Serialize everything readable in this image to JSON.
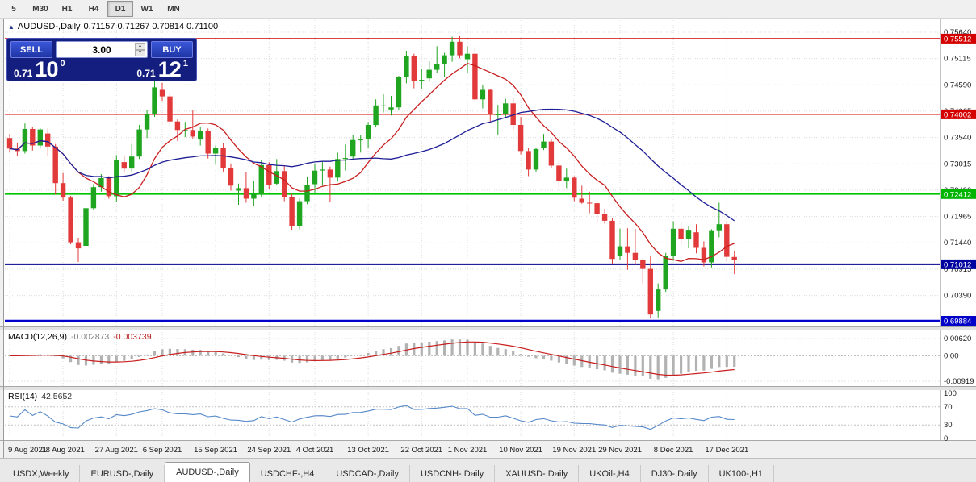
{
  "toolbar": {
    "timeframes": [
      "5",
      "M30",
      "H1",
      "H4",
      "D1",
      "W1",
      "MN"
    ],
    "active": "D1"
  },
  "chart": {
    "title_symbol": "AUDUSD-,Daily",
    "title_ohlc": "0.71157 0.71267 0.70814 0.71100"
  },
  "trade_panel": {
    "sell_label": "SELL",
    "buy_label": "BUY",
    "volume": "3.00",
    "sell_price_small": "0.71",
    "sell_price_big": "10",
    "sell_price_sup": "0",
    "buy_price_small": "0.71",
    "buy_price_big": "12",
    "buy_price_sup": "1"
  },
  "macd": {
    "name": "MACD(12,26,9)",
    "value_macd": "-0.002873",
    "value_signal": "-0.003739",
    "fast": 12,
    "slow": 26,
    "signal": 9,
    "axis_values": [
      "0.00620",
      "0.00",
      "-0.00919"
    ]
  },
  "rsi": {
    "name": "RSI(14)",
    "value": "42.5652",
    "period": 14,
    "axis_values": [
      "100",
      "70",
      "30",
      "0"
    ],
    "level_lines": [
      70,
      30
    ]
  },
  "tabs": [
    "USDX,Weekly",
    "EURUSD-,Daily",
    "AUDUSD-,Daily",
    "USDCHF-,H4",
    "USDCAD-,Daily",
    "USDCNH-,Daily",
    "XAUUSD-,Daily",
    "UKOil-,H4",
    "DJ30-,Daily",
    "UK100-,H1"
  ],
  "active_tab": "AUDUSD-,Daily",
  "colors": {
    "bull": "#1FA51F",
    "bear": "#E23A3A",
    "ma_fast": "#C81E1E",
    "ma_slow": "#1E1E96",
    "macd_hist": "#B2B2B2",
    "macd_signal": "#C81E1E",
    "rsi": "#5588C8",
    "grid": "#DCDCDC"
  },
  "chart_data": {
    "type": "candlestick",
    "symbol": "AUDUSD",
    "timeframe": "Daily",
    "y_axis": {
      "ticks": [
        "0.75640",
        "0.75115",
        "0.74590",
        "0.74065",
        "0.73540",
        "0.73015",
        "0.72490",
        "0.71965",
        "0.71440",
        "0.70915",
        "0.70390",
        "0.69865"
      ]
    },
    "hlines": [
      {
        "value": 0.75512,
        "label": "0.75512",
        "color": "#D40000",
        "width": 1.2
      },
      {
        "value": 0.74002,
        "label": "0.74002",
        "color": "#D40000",
        "width": 1.2
      },
      {
        "value": 0.72412,
        "label": "0.72412",
        "color": "#00C400",
        "width": 1.6
      },
      {
        "value": 0.71012,
        "label": "0.71012",
        "color": "#00008B",
        "width": 2
      },
      {
        "value": 0.69884,
        "label": "0.69884",
        "color": "#0000CD",
        "width": 2.6
      }
    ],
    "badges": [
      {
        "value": 0.75512,
        "label": "0.75512",
        "color": "#D40000"
      },
      {
        "value": 0.74002,
        "label": "0.74002",
        "color": "#D40000"
      },
      {
        "value": 0.72412,
        "label": "0.72412",
        "color": "#00B400"
      },
      {
        "value": 0.71012,
        "label": "0.71012",
        "color": "#0000A0"
      },
      {
        "value": 0.69884,
        "label": "0.69884",
        "color": "#0000C8"
      }
    ],
    "x_labels": [
      {
        "i": 0,
        "label": "9 Aug 2021"
      },
      {
        "i": 7,
        "label": "18 Aug 2021"
      },
      {
        "i": 14,
        "label": "27 Aug 2021"
      },
      {
        "i": 20,
        "label": "6 Sep 2021"
      },
      {
        "i": 27,
        "label": "15 Sep 2021"
      },
      {
        "i": 34,
        "label": "24 Sep 2021"
      },
      {
        "i": 40,
        "label": "4 Oct 2021"
      },
      {
        "i": 47,
        "label": "13 Oct 2021"
      },
      {
        "i": 54,
        "label": "22 Oct 2021"
      },
      {
        "i": 60,
        "label": "1 Nov 2021"
      },
      {
        "i": 67,
        "label": "10 Nov 2021"
      },
      {
        "i": 74,
        "label": "19 Nov 2021"
      },
      {
        "i": 80,
        "label": "29 Nov 2021"
      },
      {
        "i": 87,
        "label": "8 Dec 2021"
      },
      {
        "i": 94,
        "label": "17 Dec 2021"
      }
    ],
    "candles": [
      [
        "2021-08-09",
        0.7353,
        0.7361,
        0.7324,
        0.7332
      ],
      [
        "2021-08-10",
        0.7332,
        0.7344,
        0.7317,
        0.7327
      ],
      [
        "2021-08-11",
        0.7327,
        0.7382,
        0.7322,
        0.7371
      ],
      [
        "2021-08-12",
        0.7371,
        0.7375,
        0.7328,
        0.7338
      ],
      [
        "2021-08-13",
        0.7338,
        0.7373,
        0.7332,
        0.737
      ],
      [
        "2021-08-16",
        0.7362,
        0.7372,
        0.7317,
        0.7336
      ],
      [
        "2021-08-17",
        0.7336,
        0.7341,
        0.724,
        0.7263
      ],
      [
        "2021-08-18",
        0.7263,
        0.7283,
        0.7228,
        0.7234
      ],
      [
        "2021-08-19",
        0.7234,
        0.7238,
        0.7141,
        0.7145
      ],
      [
        "2021-08-20",
        0.7145,
        0.7154,
        0.7106,
        0.7133
      ],
      [
        "2021-08-23",
        0.7138,
        0.7218,
        0.7136,
        0.7213
      ],
      [
        "2021-08-24",
        0.7213,
        0.7261,
        0.721,
        0.7255
      ],
      [
        "2021-08-25",
        0.7255,
        0.7281,
        0.7246,
        0.7273
      ],
      [
        "2021-08-26",
        0.7273,
        0.7277,
        0.7232,
        0.7237
      ],
      [
        "2021-08-27",
        0.7237,
        0.7319,
        0.7226,
        0.731
      ],
      [
        "2021-08-30",
        0.7305,
        0.7316,
        0.7284,
        0.7292
      ],
      [
        "2021-08-31",
        0.7292,
        0.7341,
        0.7286,
        0.7316
      ],
      [
        "2021-09-01",
        0.7316,
        0.7379,
        0.7311,
        0.737
      ],
      [
        "2021-09-02",
        0.737,
        0.7408,
        0.7353,
        0.74
      ],
      [
        "2021-09-03",
        0.74,
        0.7478,
        0.7395,
        0.7454
      ],
      [
        "2021-09-06",
        0.7449,
        0.7463,
        0.7427,
        0.7436
      ],
      [
        "2021-09-07",
        0.7436,
        0.7442,
        0.7379,
        0.7386
      ],
      [
        "2021-09-08",
        0.7386,
        0.739,
        0.7347,
        0.7369
      ],
      [
        "2021-09-09",
        0.7369,
        0.7385,
        0.7355,
        0.7369
      ],
      [
        "2021-09-10",
        0.7369,
        0.7409,
        0.7352,
        0.7356
      ],
      [
        "2021-09-13",
        0.735,
        0.7376,
        0.7338,
        0.7367
      ],
      [
        "2021-09-14",
        0.7367,
        0.7372,
        0.7312,
        0.7322
      ],
      [
        "2021-09-15",
        0.7322,
        0.7338,
        0.73,
        0.7334
      ],
      [
        "2021-09-16",
        0.7334,
        0.7343,
        0.7286,
        0.7293
      ],
      [
        "2021-09-17",
        0.7293,
        0.7302,
        0.7248,
        0.7258
      ],
      [
        "2021-09-20",
        0.7248,
        0.7262,
        0.722,
        0.7253
      ],
      [
        "2021-09-21",
        0.7253,
        0.7285,
        0.7224,
        0.7232
      ],
      [
        "2021-09-22",
        0.7232,
        0.7267,
        0.7218,
        0.7241
      ],
      [
        "2021-09-23",
        0.7241,
        0.7309,
        0.7236,
        0.7299
      ],
      [
        "2021-09-24",
        0.7299,
        0.7305,
        0.7251,
        0.726
      ],
      [
        "2021-09-27",
        0.7262,
        0.7311,
        0.726,
        0.7287
      ],
      [
        "2021-09-28",
        0.7287,
        0.7297,
        0.7227,
        0.7236
      ],
      [
        "2021-09-29",
        0.7236,
        0.7242,
        0.717,
        0.7178
      ],
      [
        "2021-09-30",
        0.7178,
        0.7232,
        0.7171,
        0.7227
      ],
      [
        "2021-10-01",
        0.7227,
        0.7275,
        0.7221,
        0.726
      ],
      [
        "2021-10-04",
        0.7261,
        0.7302,
        0.7243,
        0.7288
      ],
      [
        "2021-10-05",
        0.7288,
        0.7305,
        0.7258,
        0.729
      ],
      [
        "2021-10-06",
        0.729,
        0.7296,
        0.7225,
        0.7274
      ],
      [
        "2021-10-07",
        0.7274,
        0.7324,
        0.7266,
        0.7311
      ],
      [
        "2021-10-08",
        0.7311,
        0.734,
        0.7288,
        0.7313
      ],
      [
        "2021-10-11",
        0.7316,
        0.7359,
        0.7312,
        0.7349
      ],
      [
        "2021-10-12",
        0.7349,
        0.7359,
        0.7324,
        0.735
      ],
      [
        "2021-10-13",
        0.735,
        0.7385,
        0.7334,
        0.7379
      ],
      [
        "2021-10-14",
        0.7379,
        0.743,
        0.7375,
        0.7418
      ],
      [
        "2021-10-15",
        0.7418,
        0.744,
        0.7404,
        0.7418
      ],
      [
        "2021-10-18",
        0.741,
        0.7437,
        0.7398,
        0.7414
      ],
      [
        "2021-10-19",
        0.7414,
        0.7477,
        0.7409,
        0.7475
      ],
      [
        "2021-10-20",
        0.7475,
        0.7527,
        0.7462,
        0.7516
      ],
      [
        "2021-10-21",
        0.7516,
        0.7521,
        0.7452,
        0.7466
      ],
      [
        "2021-10-22",
        0.7466,
        0.7491,
        0.745,
        0.7469
      ],
      [
        "2021-10-25",
        0.7472,
        0.7506,
        0.7465,
        0.7489
      ],
      [
        "2021-10-26",
        0.7489,
        0.7536,
        0.7482,
        0.75
      ],
      [
        "2021-10-27",
        0.75,
        0.7523,
        0.7475,
        0.7518
      ],
      [
        "2021-10-28",
        0.7518,
        0.7555,
        0.7505,
        0.7545
      ],
      [
        "2021-10-29",
        0.7545,
        0.7556,
        0.7512,
        0.7518
      ],
      [
        "2021-11-01",
        0.751,
        0.7536,
        0.7483,
        0.7521
      ],
      [
        "2021-11-02",
        0.7521,
        0.7535,
        0.7426,
        0.743
      ],
      [
        "2021-11-03",
        0.743,
        0.7458,
        0.7412,
        0.7449
      ],
      [
        "2021-11-04",
        0.7449,
        0.7451,
        0.7386,
        0.7399
      ],
      [
        "2021-11-05",
        0.7399,
        0.7419,
        0.736,
        0.74
      ],
      [
        "2021-11-08",
        0.7401,
        0.7431,
        0.7393,
        0.7422
      ],
      [
        "2021-11-09",
        0.7422,
        0.7432,
        0.737,
        0.7379
      ],
      [
        "2021-11-10",
        0.7379,
        0.7395,
        0.732,
        0.7327
      ],
      [
        "2021-11-11",
        0.7327,
        0.7333,
        0.7277,
        0.729
      ],
      [
        "2021-11-12",
        0.729,
        0.7334,
        0.7286,
        0.7331
      ],
      [
        "2021-11-15",
        0.7333,
        0.7361,
        0.7329,
        0.7346
      ],
      [
        "2021-11-16",
        0.7346,
        0.7351,
        0.7293,
        0.7298
      ],
      [
        "2021-11-17",
        0.7298,
        0.7306,
        0.7254,
        0.7267
      ],
      [
        "2021-11-18",
        0.7267,
        0.7292,
        0.7253,
        0.7274
      ],
      [
        "2021-11-19",
        0.7274,
        0.7277,
        0.7227,
        0.7234
      ],
      [
        "2021-11-22",
        0.7232,
        0.7258,
        0.7222,
        0.7224
      ],
      [
        "2021-11-23",
        0.7224,
        0.7246,
        0.7203,
        0.7223
      ],
      [
        "2021-11-24",
        0.7223,
        0.7228,
        0.7184,
        0.7201
      ],
      [
        "2021-11-25",
        0.7201,
        0.7212,
        0.7182,
        0.7188
      ],
      [
        "2021-11-26",
        0.7188,
        0.7193,
        0.7102,
        0.7112
      ],
      [
        "2021-11-29",
        0.7118,
        0.7172,
        0.7109,
        0.7137
      ],
      [
        "2021-11-30",
        0.7137,
        0.7173,
        0.709,
        0.7124
      ],
      [
        "2021-12-01",
        0.7124,
        0.7172,
        0.71,
        0.711
      ],
      [
        "2021-12-02",
        0.711,
        0.7113,
        0.7063,
        0.7092
      ],
      [
        "2021-12-03",
        0.7092,
        0.7117,
        0.6993,
        0.7001
      ],
      [
        "2021-12-06",
        0.7008,
        0.7063,
        0.6995,
        0.7051
      ],
      [
        "2021-12-07",
        0.7051,
        0.7124,
        0.7046,
        0.7118
      ],
      [
        "2021-12-08",
        0.7118,
        0.7187,
        0.7108,
        0.7172
      ],
      [
        "2021-12-09",
        0.7172,
        0.7186,
        0.714,
        0.7152
      ],
      [
        "2021-12-10",
        0.7152,
        0.7178,
        0.7133,
        0.717
      ],
      [
        "2021-12-13",
        0.7165,
        0.7181,
        0.7123,
        0.7134
      ],
      [
        "2021-12-14",
        0.7134,
        0.7147,
        0.7097,
        0.7105
      ],
      [
        "2021-12-15",
        0.7105,
        0.7171,
        0.7095,
        0.7169
      ],
      [
        "2021-12-16",
        0.7169,
        0.7224,
        0.7155,
        0.7181
      ],
      [
        "2021-12-17",
        0.7181,
        0.7187,
        0.7106,
        0.7116
      ],
      [
        "2021-12-20",
        0.71157,
        0.71267,
        0.70814,
        0.711
      ]
    ]
  }
}
